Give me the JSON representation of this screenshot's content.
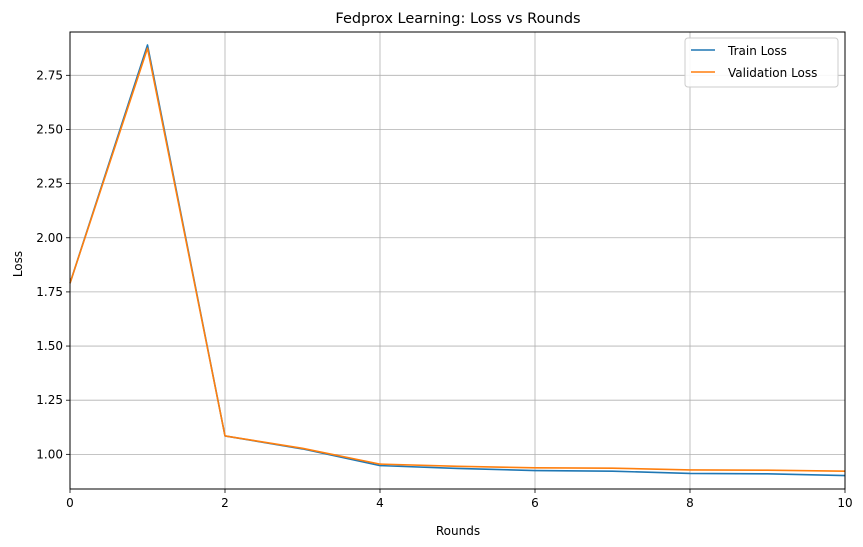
{
  "chart_data": {
    "type": "line",
    "title": "Fedprox Learning: Loss vs Rounds",
    "xlabel": "Rounds",
    "ylabel": "Loss",
    "xlim": [
      0,
      10
    ],
    "ylim": [
      0.84,
      2.95
    ],
    "xticks": [
      0,
      2,
      4,
      6,
      8,
      10
    ],
    "yticks": [
      1.0,
      1.25,
      1.5,
      1.75,
      2.0,
      2.25,
      2.5,
      2.75
    ],
    "x": [
      0,
      1,
      2,
      3,
      4,
      5,
      6,
      7,
      8,
      9,
      10
    ],
    "series": [
      {
        "name": "Train Loss",
        "color": "#1f77b4",
        "values": [
          1.79,
          2.89,
          1.085,
          1.025,
          0.948,
          0.935,
          0.925,
          0.922,
          0.912,
          0.91,
          0.902
        ]
      },
      {
        "name": "Validation Loss",
        "color": "#ff7f0e",
        "values": [
          1.79,
          2.875,
          1.085,
          1.028,
          0.955,
          0.945,
          0.938,
          0.936,
          0.928,
          0.927,
          0.922
        ]
      }
    ],
    "grid": true,
    "legend": "top-right"
  }
}
